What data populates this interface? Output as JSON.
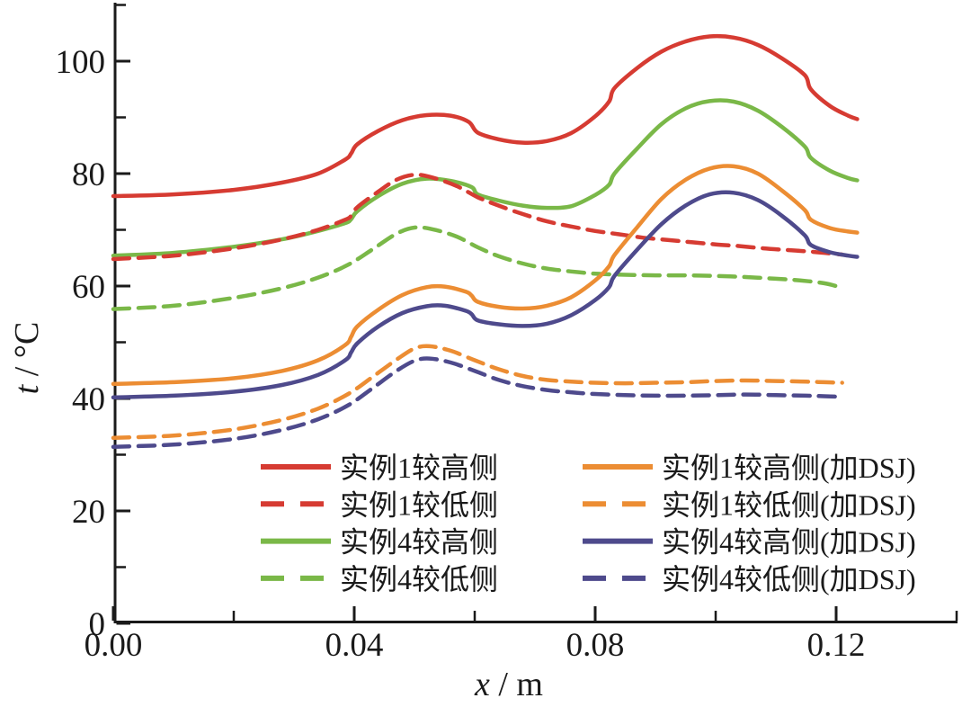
{
  "figure": {
    "background": "#ffffff",
    "axis_color": "#1a1a1a"
  },
  "axis": {
    "ylabel_var": "t",
    "ylabel_rest": " / °C",
    "xlabel_var": "x",
    "xlabel_rest": " / m"
  },
  "chart_data": {
    "type": "line",
    "title": "",
    "xlabel": "x / m",
    "ylabel": "t / °C",
    "xlim": [
      0,
      0.14
    ],
    "ylim": [
      0,
      110
    ],
    "grid": false,
    "legend_position": "lower center, two columns, no frame",
    "x_major_ticks": [
      {
        "value": 0.0,
        "label": "0.00"
      },
      {
        "value": 0.04,
        "label": "0.04"
      },
      {
        "value": 0.08,
        "label": "0.08"
      },
      {
        "value": 0.12,
        "label": "0.12"
      }
    ],
    "x_minor_ticks": [
      0.02,
      0.06,
      0.1,
      0.14
    ],
    "y_major_ticks": [
      {
        "value": 0,
        "label": "0"
      },
      {
        "value": 20,
        "label": "20"
      },
      {
        "value": 40,
        "label": "40"
      },
      {
        "value": 60,
        "label": "60"
      },
      {
        "value": 80,
        "label": "80"
      },
      {
        "value": 100,
        "label": "100"
      }
    ],
    "y_minor_ticks": [
      10,
      30,
      50,
      70,
      90,
      110
    ],
    "draw_order": [
      0,
      2,
      1,
      3,
      4,
      6,
      5,
      7
    ],
    "series": [
      {
        "key": "case1-high-side",
        "name": "实例1较高侧",
        "color": "#d63b32",
        "style": "solid",
        "points": [
          [
            0,
            76.0
          ],
          [
            0.01,
            76.3
          ],
          [
            0.02,
            77.1
          ],
          [
            0.028,
            78.4
          ],
          [
            0.034,
            80.0
          ],
          [
            0.0385,
            82.5
          ],
          [
            0.0395,
            83.6
          ],
          [
            0.0405,
            85.2
          ],
          [
            0.044,
            87.6
          ],
          [
            0.048,
            89.5
          ],
          [
            0.052,
            90.4
          ],
          [
            0.056,
            90.3
          ],
          [
            0.059,
            89.2
          ],
          [
            0.0605,
            87.3
          ],
          [
            0.064,
            86.1
          ],
          [
            0.068,
            85.5
          ],
          [
            0.072,
            85.8
          ],
          [
            0.076,
            87.2
          ],
          [
            0.08,
            90.2
          ],
          [
            0.0823,
            92.8
          ],
          [
            0.0832,
            95.2
          ],
          [
            0.087,
            98.8
          ],
          [
            0.091,
            101.7
          ],
          [
            0.095,
            103.5
          ],
          [
            0.099,
            104.4
          ],
          [
            0.103,
            104.2
          ],
          [
            0.107,
            102.9
          ],
          [
            0.111,
            100.5
          ],
          [
            0.1148,
            97.5
          ],
          [
            0.1158,
            95.0
          ],
          [
            0.119,
            92.0
          ],
          [
            0.122,
            90.3
          ],
          [
            0.1235,
            89.7
          ]
        ]
      },
      {
        "key": "case1-low-side",
        "name": "实例1较低侧",
        "color": "#d63b32",
        "style": "dashed",
        "points": [
          [
            0,
            64.8
          ],
          [
            0.01,
            65.4
          ],
          [
            0.02,
            66.7
          ],
          [
            0.028,
            68.3
          ],
          [
            0.034,
            70.0
          ],
          [
            0.0385,
            71.8
          ],
          [
            0.0395,
            72.5
          ],
          [
            0.0405,
            74.0
          ],
          [
            0.044,
            76.8
          ],
          [
            0.047,
            78.9
          ],
          [
            0.05,
            79.8
          ],
          [
            0.053,
            79.3
          ],
          [
            0.057,
            77.8
          ],
          [
            0.0605,
            75.8
          ],
          [
            0.064,
            74.3
          ],
          [
            0.068,
            72.8
          ],
          [
            0.072,
            71.5
          ],
          [
            0.076,
            70.6
          ],
          [
            0.08,
            69.8
          ],
          [
            0.084,
            69.2
          ],
          [
            0.088,
            68.6
          ],
          [
            0.092,
            68.2
          ],
          [
            0.096,
            67.8
          ],
          [
            0.1,
            67.4
          ],
          [
            0.104,
            67.1
          ],
          [
            0.108,
            66.7
          ],
          [
            0.112,
            66.4
          ],
          [
            0.116,
            66.1
          ],
          [
            0.119,
            65.8
          ],
          [
            0.121,
            65.6
          ]
        ]
      },
      {
        "key": "case4-high-side",
        "name": "实例4较高侧",
        "color": "#7ab848",
        "style": "solid",
        "points": [
          [
            0,
            65.4
          ],
          [
            0.01,
            65.9
          ],
          [
            0.02,
            67.0
          ],
          [
            0.028,
            68.3
          ],
          [
            0.034,
            69.8
          ],
          [
            0.0385,
            71.2
          ],
          [
            0.0395,
            71.9
          ],
          [
            0.0405,
            73.3
          ],
          [
            0.044,
            76.0
          ],
          [
            0.048,
            78.2
          ],
          [
            0.052,
            79.1
          ],
          [
            0.056,
            78.7
          ],
          [
            0.0595,
            77.6
          ],
          [
            0.0605,
            76.3
          ],
          [
            0.064,
            75.2
          ],
          [
            0.068,
            74.3
          ],
          [
            0.072,
            73.9
          ],
          [
            0.076,
            74.2
          ],
          [
            0.08,
            76.2
          ],
          [
            0.0823,
            78.0
          ],
          [
            0.0832,
            80.0
          ],
          [
            0.087,
            84.5
          ],
          [
            0.091,
            88.8
          ],
          [
            0.095,
            91.6
          ],
          [
            0.099,
            92.9
          ],
          [
            0.103,
            92.8
          ],
          [
            0.107,
            91.2
          ],
          [
            0.111,
            88.3
          ],
          [
            0.1148,
            84.8
          ],
          [
            0.1158,
            82.8
          ],
          [
            0.119,
            80.5
          ],
          [
            0.122,
            79.2
          ],
          [
            0.1235,
            78.8
          ]
        ]
      },
      {
        "key": "case4-low-side",
        "name": "实例4较低侧",
        "color": "#7ab848",
        "style": "dashed",
        "points": [
          [
            0,
            55.9
          ],
          [
            0.01,
            56.5
          ],
          [
            0.02,
            57.9
          ],
          [
            0.028,
            59.6
          ],
          [
            0.034,
            61.5
          ],
          [
            0.039,
            63.8
          ],
          [
            0.043,
            66.5
          ],
          [
            0.047,
            69.3
          ],
          [
            0.05,
            70.4
          ],
          [
            0.053,
            70.1
          ],
          [
            0.057,
            68.8
          ],
          [
            0.0605,
            66.9
          ],
          [
            0.064,
            65.3
          ],
          [
            0.068,
            64.0
          ],
          [
            0.072,
            63.1
          ],
          [
            0.076,
            62.6
          ],
          [
            0.08,
            62.2
          ],
          [
            0.085,
            62.0
          ],
          [
            0.09,
            61.9
          ],
          [
            0.095,
            61.9
          ],
          [
            0.1,
            61.8
          ],
          [
            0.105,
            61.6
          ],
          [
            0.11,
            61.3
          ],
          [
            0.114,
            61.0
          ],
          [
            0.118,
            60.5
          ],
          [
            0.121,
            59.7
          ]
        ]
      },
      {
        "key": "case1-high-side-dsj",
        "name": "实例1较高侧(加DSJ)",
        "color": "#ec8d33",
        "style": "solid",
        "points": [
          [
            0,
            42.6
          ],
          [
            0.01,
            42.9
          ],
          [
            0.02,
            43.6
          ],
          [
            0.028,
            44.9
          ],
          [
            0.034,
            46.8
          ],
          [
            0.0385,
            49.5
          ],
          [
            0.0395,
            51.0
          ],
          [
            0.0405,
            52.8
          ],
          [
            0.044,
            55.8
          ],
          [
            0.048,
            58.4
          ],
          [
            0.052,
            59.8
          ],
          [
            0.055,
            59.9
          ],
          [
            0.0585,
            59.0
          ],
          [
            0.0595,
            58.3
          ],
          [
            0.0605,
            57.2
          ],
          [
            0.064,
            56.3
          ],
          [
            0.068,
            56.0
          ],
          [
            0.072,
            56.5
          ],
          [
            0.076,
            58.0
          ],
          [
            0.08,
            61.0
          ],
          [
            0.0823,
            63.5
          ],
          [
            0.0832,
            65.5
          ],
          [
            0.087,
            70.5
          ],
          [
            0.091,
            75.5
          ],
          [
            0.095,
            78.9
          ],
          [
            0.099,
            80.9
          ],
          [
            0.103,
            81.3
          ],
          [
            0.107,
            80.0
          ],
          [
            0.111,
            77.0
          ],
          [
            0.1148,
            73.5
          ],
          [
            0.1158,
            71.8
          ],
          [
            0.119,
            70.3
          ],
          [
            0.122,
            69.7
          ],
          [
            0.1235,
            69.5
          ]
        ]
      },
      {
        "key": "case1-low-side-dsj",
        "name": "实例1较低侧(加DSJ)",
        "color": "#ec8d33",
        "style": "dashed",
        "points": [
          [
            0,
            33.0
          ],
          [
            0.01,
            33.4
          ],
          [
            0.02,
            34.5
          ],
          [
            0.028,
            36.2
          ],
          [
            0.034,
            38.2
          ],
          [
            0.039,
            40.8
          ],
          [
            0.043,
            43.8
          ],
          [
            0.047,
            46.9
          ],
          [
            0.05,
            48.9
          ],
          [
            0.0525,
            49.3
          ],
          [
            0.056,
            48.5
          ],
          [
            0.06,
            46.8
          ],
          [
            0.064,
            45.2
          ],
          [
            0.068,
            44.0
          ],
          [
            0.072,
            43.3
          ],
          [
            0.076,
            43.0
          ],
          [
            0.08,
            42.8
          ],
          [
            0.085,
            42.7
          ],
          [
            0.09,
            42.8
          ],
          [
            0.095,
            42.9
          ],
          [
            0.1,
            43.1
          ],
          [
            0.105,
            43.2
          ],
          [
            0.11,
            43.1
          ],
          [
            0.115,
            43.0
          ],
          [
            0.118,
            42.9
          ],
          [
            0.121,
            42.8
          ]
        ]
      },
      {
        "key": "case4-high-side-dsj",
        "name": "实例4较高侧(加DSJ)",
        "color": "#4e4a8c",
        "style": "solid",
        "points": [
          [
            0,
            40.2
          ],
          [
            0.01,
            40.5
          ],
          [
            0.02,
            41.2
          ],
          [
            0.028,
            42.4
          ],
          [
            0.034,
            44.2
          ],
          [
            0.0385,
            46.8
          ],
          [
            0.0395,
            48.2
          ],
          [
            0.0405,
            49.8
          ],
          [
            0.044,
            52.8
          ],
          [
            0.048,
            55.2
          ],
          [
            0.052,
            56.4
          ],
          [
            0.055,
            56.5
          ],
          [
            0.0585,
            55.6
          ],
          [
            0.0595,
            55.0
          ],
          [
            0.0605,
            53.9
          ],
          [
            0.064,
            53.2
          ],
          [
            0.068,
            52.9
          ],
          [
            0.072,
            53.3
          ],
          [
            0.076,
            54.8
          ],
          [
            0.08,
            57.5
          ],
          [
            0.0823,
            59.8
          ],
          [
            0.0832,
            61.8
          ],
          [
            0.087,
            66.5
          ],
          [
            0.091,
            71.0
          ],
          [
            0.095,
            74.3
          ],
          [
            0.099,
            76.3
          ],
          [
            0.103,
            76.6
          ],
          [
            0.107,
            75.3
          ],
          [
            0.111,
            72.5
          ],
          [
            0.1148,
            69.0
          ],
          [
            0.1158,
            67.3
          ],
          [
            0.119,
            66.0
          ],
          [
            0.122,
            65.4
          ],
          [
            0.1235,
            65.2
          ]
        ]
      },
      {
        "key": "case4-low-side-dsj",
        "name": "实例4较低侧(加DSJ)",
        "color": "#4e4a8c",
        "style": "dashed",
        "points": [
          [
            0,
            31.4
          ],
          [
            0.01,
            31.8
          ],
          [
            0.02,
            32.8
          ],
          [
            0.028,
            34.4
          ],
          [
            0.034,
            36.3
          ],
          [
            0.039,
            38.8
          ],
          [
            0.043,
            41.8
          ],
          [
            0.047,
            44.9
          ],
          [
            0.05,
            46.7
          ],
          [
            0.0525,
            47.1
          ],
          [
            0.056,
            46.4
          ],
          [
            0.06,
            44.9
          ],
          [
            0.064,
            43.3
          ],
          [
            0.068,
            42.2
          ],
          [
            0.072,
            41.5
          ],
          [
            0.076,
            41.1
          ],
          [
            0.08,
            40.8
          ],
          [
            0.085,
            40.6
          ],
          [
            0.09,
            40.5
          ],
          [
            0.095,
            40.5
          ],
          [
            0.1,
            40.6
          ],
          [
            0.105,
            40.7
          ],
          [
            0.11,
            40.6
          ],
          [
            0.115,
            40.5
          ],
          [
            0.118,
            40.4
          ],
          [
            0.121,
            40.3
          ]
        ]
      }
    ],
    "legend_columns": [
      {
        "series_indexes": [
          0,
          1,
          2,
          3
        ]
      },
      {
        "series_indexes": [
          4,
          5,
          6,
          7
        ]
      }
    ]
  }
}
